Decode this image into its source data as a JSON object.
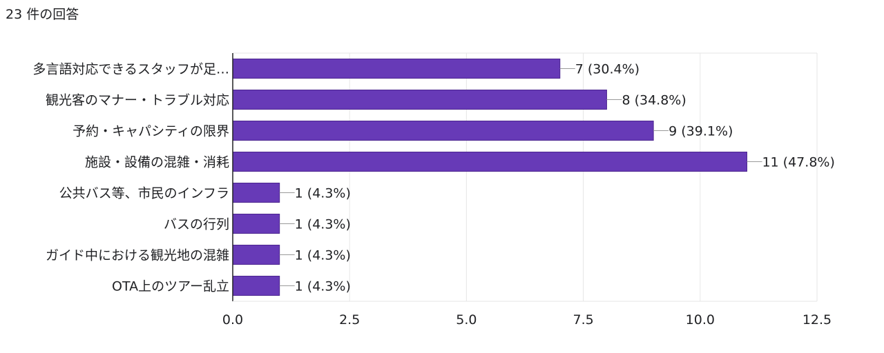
{
  "response_count": "23 件の回答",
  "colors": {
    "bar": "#673ab7",
    "bar_stroke": "#4b248f",
    "grid": "#e6e6e6",
    "axis": "#202124",
    "leader": "#999999"
  },
  "chart_data": {
    "type": "bar",
    "orientation": "horizontal",
    "title": "",
    "xlabel": "",
    "ylabel": "",
    "categories": [
      "多言語対応できるスタッフが足…",
      "観光客のマナー・トラブル対応",
      "予約・キャパシティの限界",
      "施設・設備の混雑・消耗",
      "公共バス等、市民のインフラ",
      "バスの行列",
      "ガイド中における観光地の混雑",
      "OTA上のツアー乱立"
    ],
    "values": [
      7,
      8,
      9,
      11,
      1,
      1,
      1,
      1
    ],
    "data_labels": [
      "7 (30.4%)",
      "8 (34.8%)",
      "9 (39.1%)",
      "11 (47.8%)",
      "1 (4.3%)",
      "1 (4.3%)",
      "1 (4.3%)",
      "1 (4.3%)"
    ],
    "xlim": [
      0,
      12.5
    ],
    "xticks": [
      0,
      2.5,
      5,
      7.5,
      10,
      12.5
    ],
    "xtick_labels": [
      "0.0",
      "2.5",
      "5.0",
      "7.5",
      "10.0",
      "12.5"
    ],
    "grid": true,
    "legend": "none"
  }
}
